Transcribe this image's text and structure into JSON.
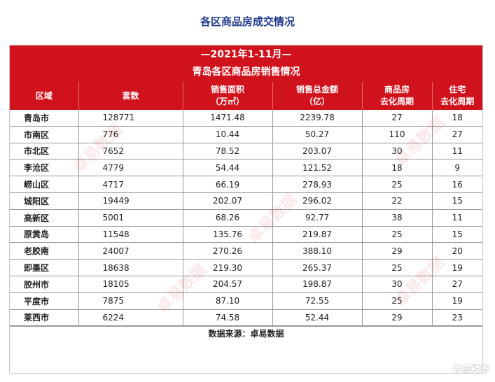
{
  "page_title": "各区商品房成交情况",
  "table": {
    "period": "—2021年1-11月—",
    "title": "青岛各区商品房销售情况",
    "headers": {
      "region": "区域",
      "sets": "套数",
      "area_line1": "销售面积",
      "area_line2": "（万㎡）",
      "amount_line1": "销售总金额",
      "amount_line2": "（亿）",
      "commercial_line1": "商品房",
      "commercial_line2": "去化周期",
      "residential_line1": "住宅",
      "residential_line2": "去化周期"
    },
    "rows": [
      {
        "region": "青岛市",
        "sets": "128771",
        "area": "1471.48",
        "amount": "2239.78",
        "commercial": "27",
        "residential": "18"
      },
      {
        "region": "市南区",
        "sets": "776",
        "area": "10.44",
        "amount": "50.27",
        "commercial": "110",
        "residential": "27"
      },
      {
        "region": "市北区",
        "sets": "7652",
        "area": "78.52",
        "amount": "203.07",
        "commercial": "30",
        "residential": "11"
      },
      {
        "region": "李沧区",
        "sets": "4779",
        "area": "54.44",
        "amount": "121.52",
        "commercial": "18",
        "residential": "9"
      },
      {
        "region": "崂山区",
        "sets": "4717",
        "area": "66.19",
        "amount": "278.93",
        "commercial": "25",
        "residential": "16"
      },
      {
        "region": "城阳区",
        "sets": "19449",
        "area": "202.07",
        "amount": "296.02",
        "commercial": "22",
        "residential": "15"
      },
      {
        "region": "高新区",
        "sets": "5001",
        "area": "68.26",
        "amount": "92.77",
        "commercial": "38",
        "residential": "11"
      },
      {
        "region": "原黄岛",
        "sets": "11548",
        "area": "135.76",
        "amount": "219.87",
        "commercial": "25",
        "residential": "15"
      },
      {
        "region": "老胶南",
        "sets": "24007",
        "area": "270.26",
        "amount": "388.10",
        "commercial": "29",
        "residential": "20"
      },
      {
        "region": "即墨区",
        "sets": "18638",
        "area": "219.30",
        "amount": "265.37",
        "commercial": "25",
        "residential": "19"
      },
      {
        "region": "胶州市",
        "sets": "18105",
        "area": "204.57",
        "amount": "198.87",
        "commercial": "30",
        "residential": "27"
      },
      {
        "region": "平度市",
        "sets": "7875",
        "area": "87.10",
        "amount": "72.55",
        "commercial": "25",
        "residential": "19"
      },
      {
        "region": "莱西市",
        "sets": "6224",
        "area": "74.58",
        "amount": "52.44",
        "commercial": "29",
        "residential": "23"
      }
    ],
    "source": "数据来源：卓易数据"
  },
  "watermark_text": "卓易数据",
  "corner_badge": "青岛楼市",
  "colors": {
    "header_red": "#d0121c",
    "heading_blue": "#1f3a8c"
  }
}
